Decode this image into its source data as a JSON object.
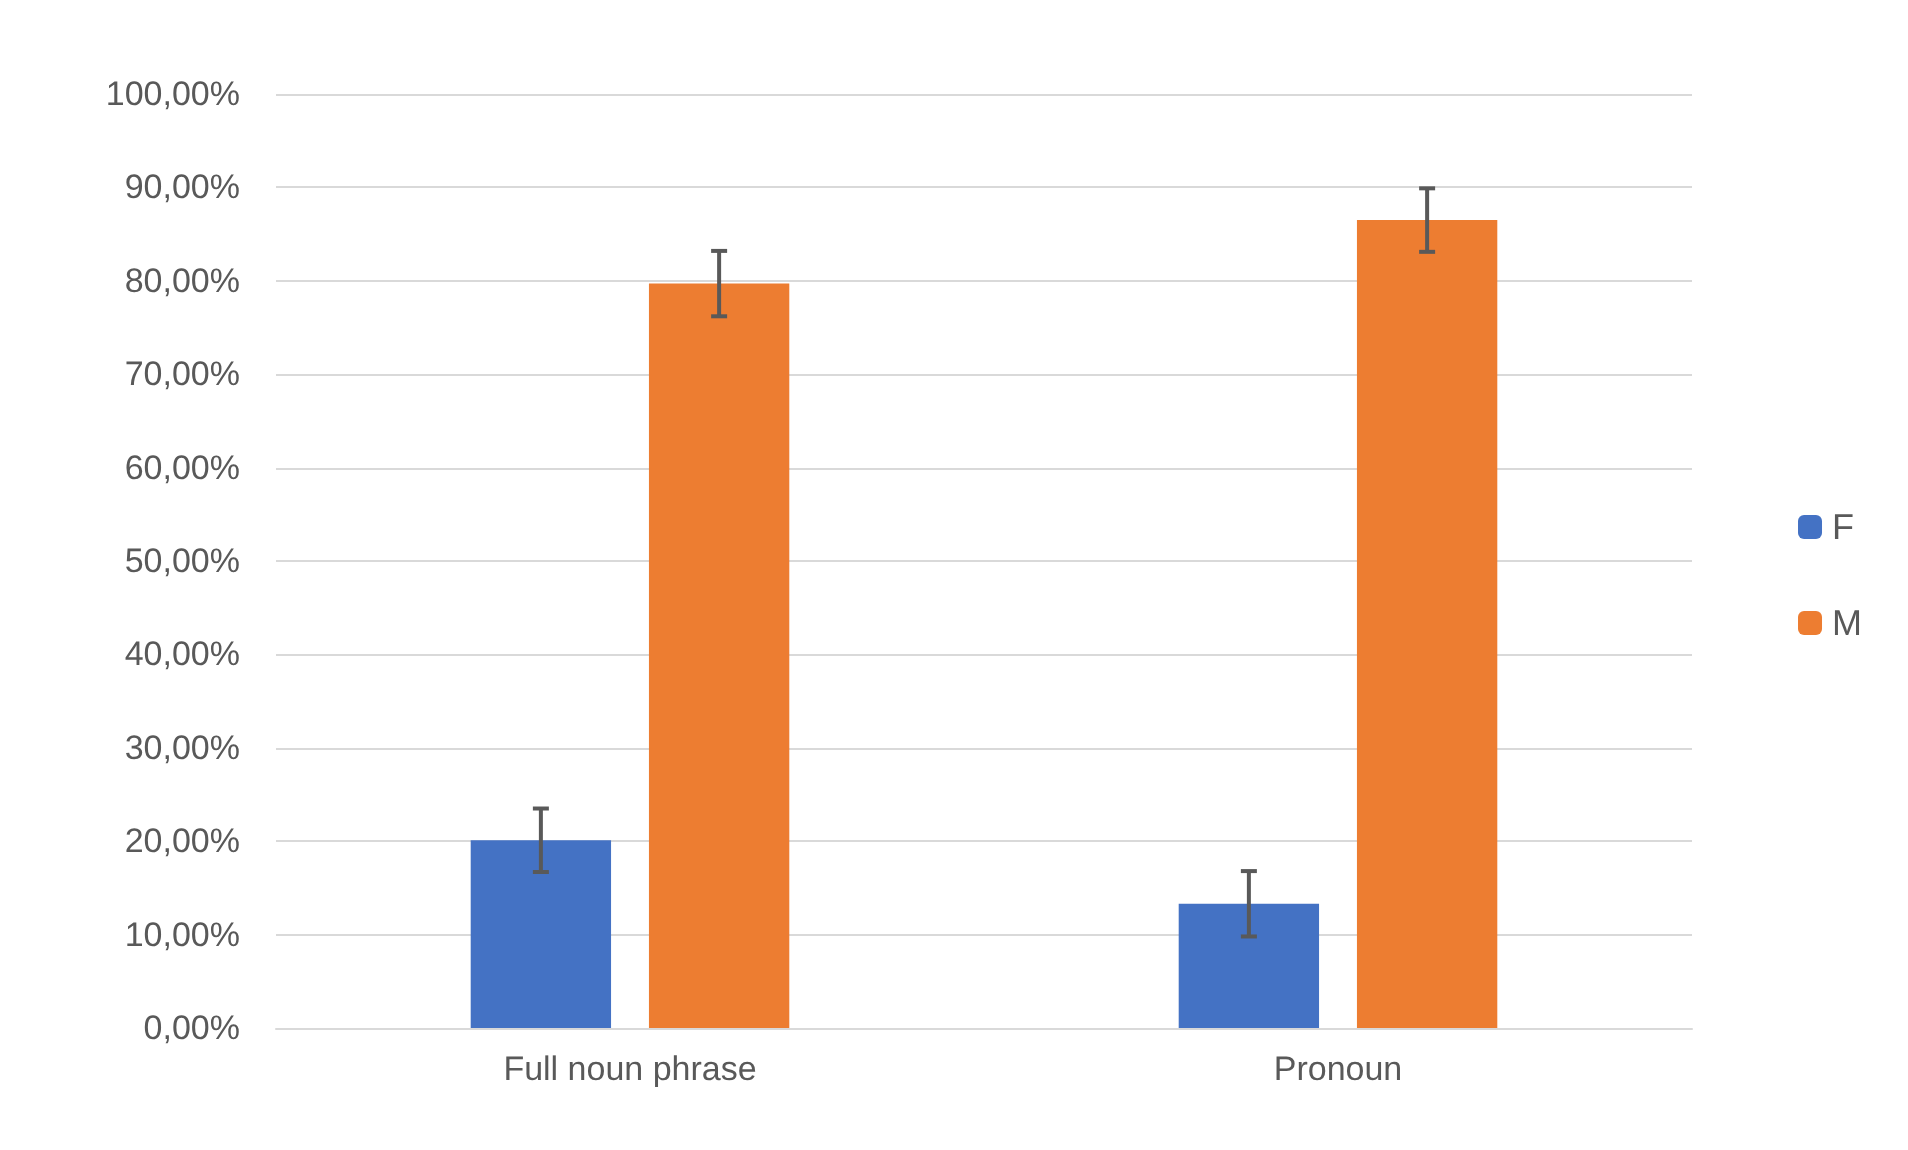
{
  "chart_data": {
    "type": "bar",
    "categories": [
      "Full noun phrase",
      "Pronoun"
    ],
    "series": [
      {
        "name": "F",
        "color": "#4472c4",
        "values": [
          20.1,
          13.3
        ],
        "errors": [
          3.4,
          3.5
        ]
      },
      {
        "name": "M",
        "color": "#ed7d31",
        "values": [
          79.7,
          86.5
        ],
        "errors": [
          3.5,
          3.4
        ]
      }
    ],
    "ylim": [
      0,
      100
    ],
    "yticks": [
      {
        "value": 0,
        "label": "0,00%"
      },
      {
        "value": 10,
        "label": "10,00%"
      },
      {
        "value": 20,
        "label": "20,00%"
      },
      {
        "value": 30,
        "label": "30,00%"
      },
      {
        "value": 40,
        "label": "40,00%"
      },
      {
        "value": 50,
        "label": "50,00%"
      },
      {
        "value": 60,
        "label": "60,00%"
      },
      {
        "value": 70,
        "label": "70,00%"
      },
      {
        "value": 80,
        "label": "80,00%"
      },
      {
        "value": 90,
        "label": "90,00%"
      },
      {
        "value": 100,
        "label": "100,00%"
      }
    ],
    "grid": "y",
    "legend": "right"
  }
}
